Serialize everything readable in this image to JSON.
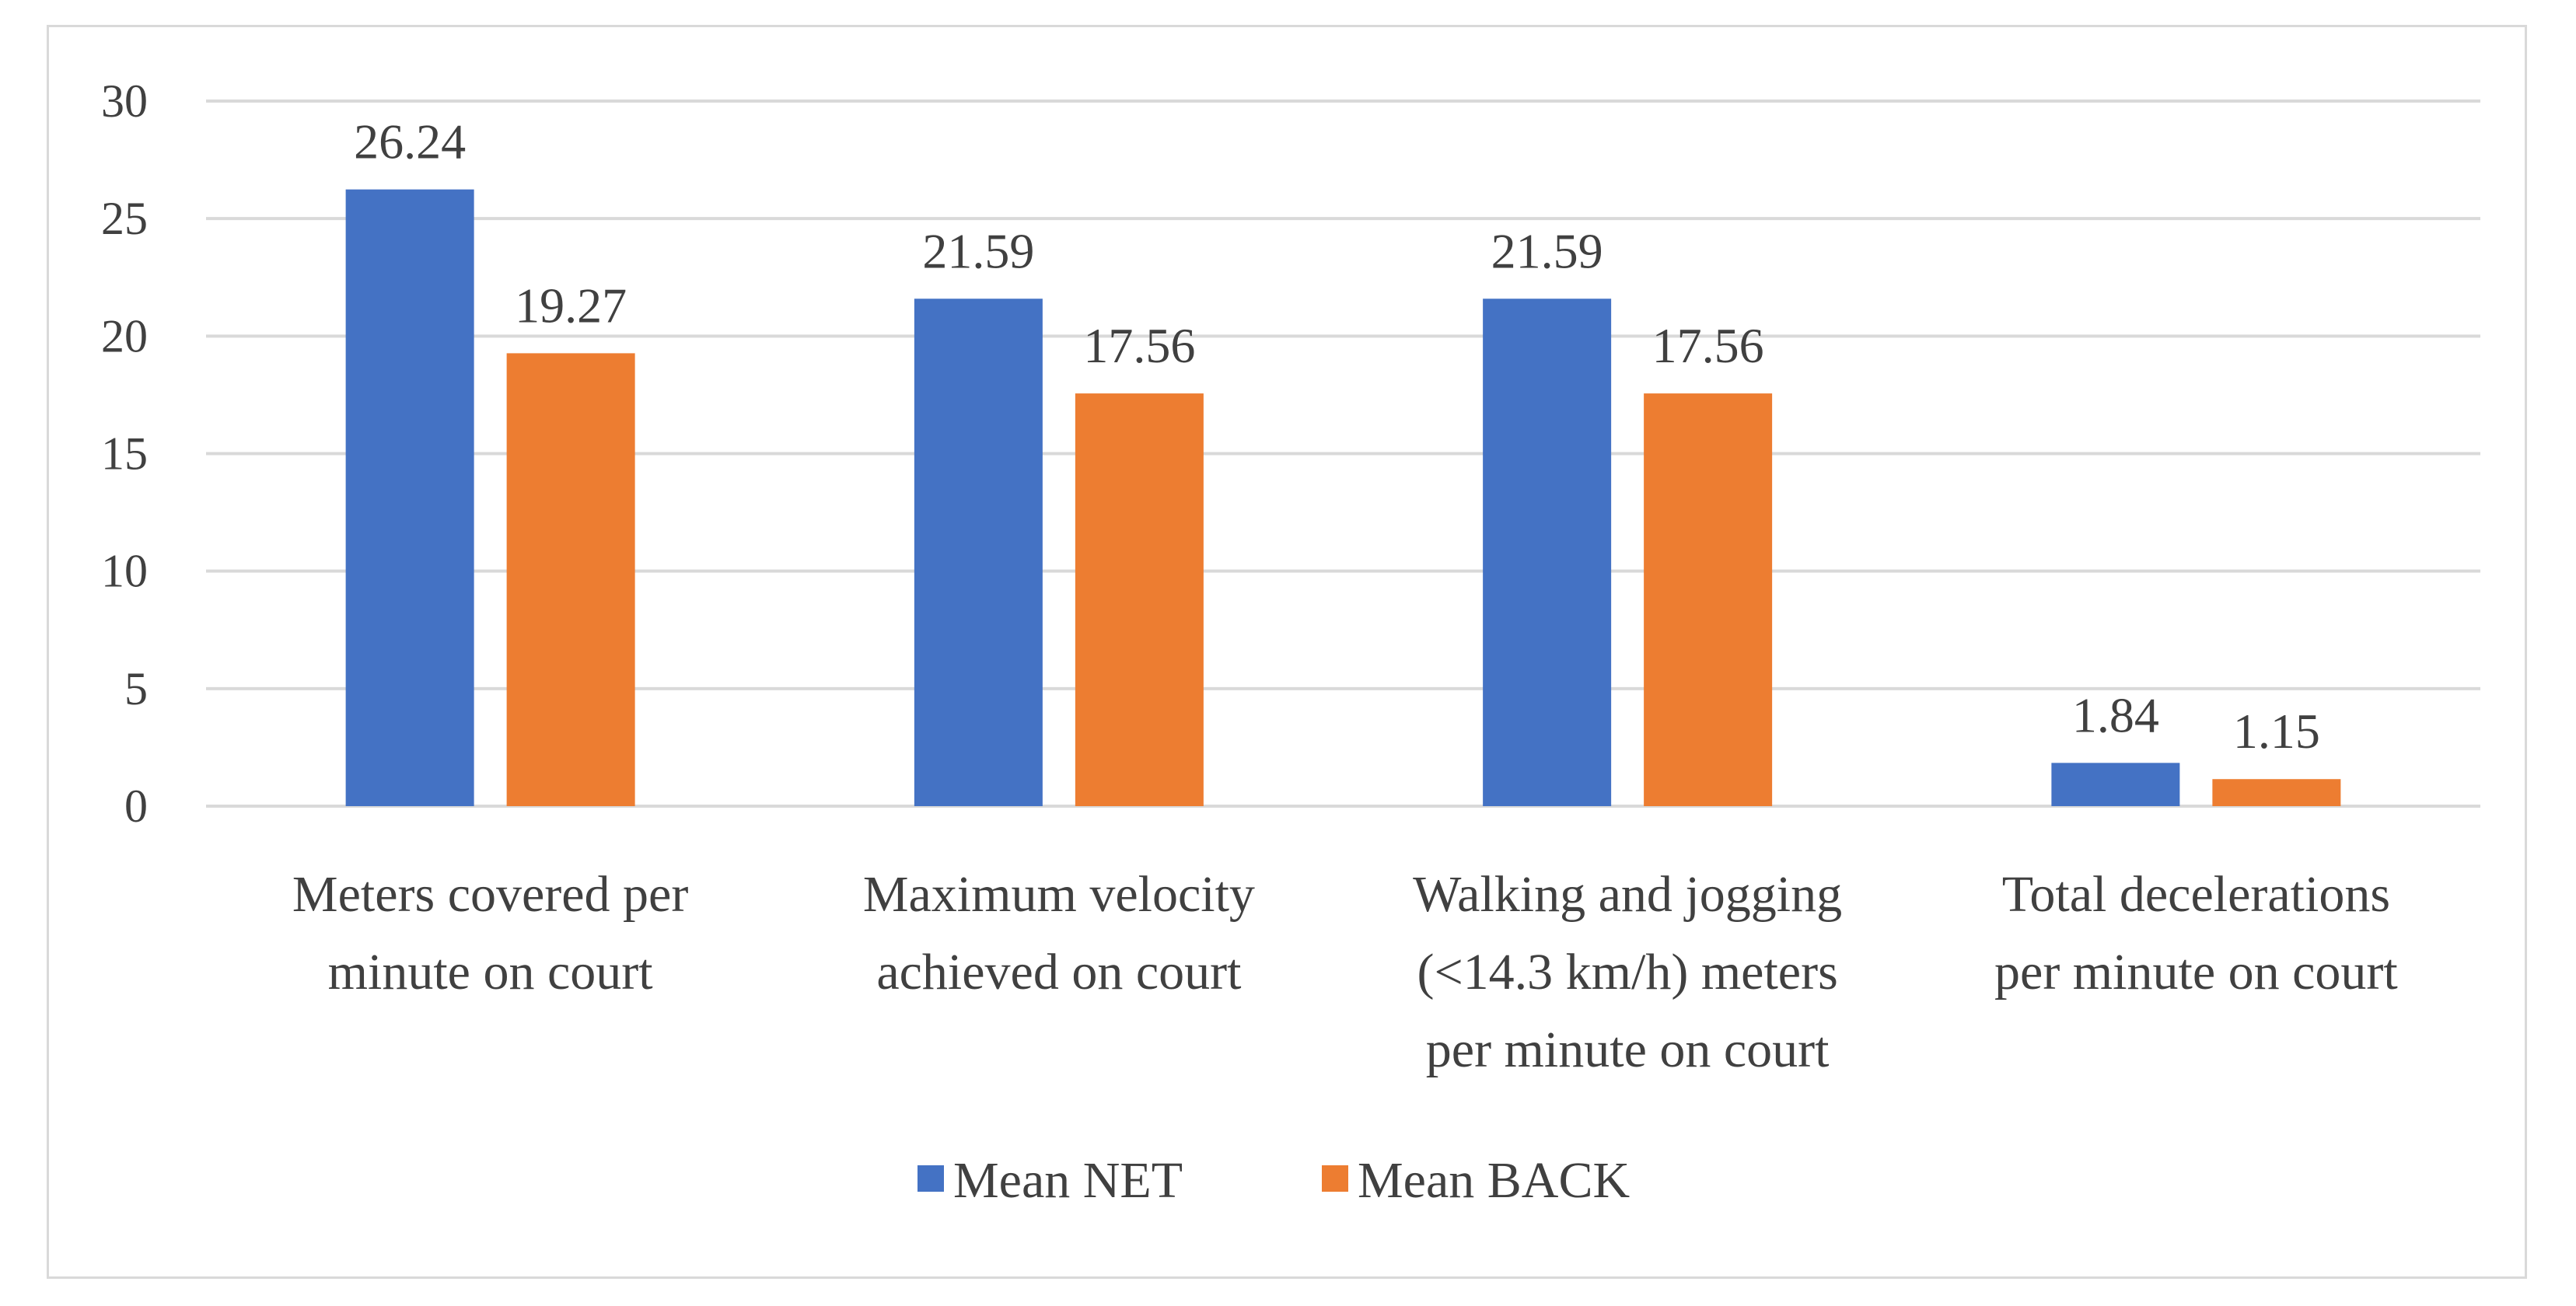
{
  "chart_data": {
    "type": "bar",
    "title": "",
    "xlabel": "",
    "ylabel": "",
    "ylim": [
      0,
      30
    ],
    "yticks": [
      0,
      5,
      10,
      15,
      20,
      25,
      30
    ],
    "gridlines": true,
    "legend_position": "bottom",
    "categories": [
      [
        "Meters covered per",
        "minute on court"
      ],
      [
        "Maximum velocity",
        "achieved on court"
      ],
      [
        "Walking and jogging",
        "(<14.3 km/h) meters",
        "per minute on court"
      ],
      [
        "Total decelerations",
        "per minute on court"
      ]
    ],
    "series": [
      {
        "name": "Mean NET",
        "color": "#4472c4",
        "values": [
          26.24,
          21.59,
          21.59,
          1.84
        ],
        "labels": [
          "26.24",
          "21.59",
          "21.59",
          "1.84"
        ]
      },
      {
        "name": "Mean BACK",
        "color": "#ed7d31",
        "values": [
          19.27,
          17.56,
          17.56,
          1.15
        ],
        "labels": [
          "19.27",
          "17.56",
          "17.56",
          "1.15"
        ]
      }
    ]
  }
}
